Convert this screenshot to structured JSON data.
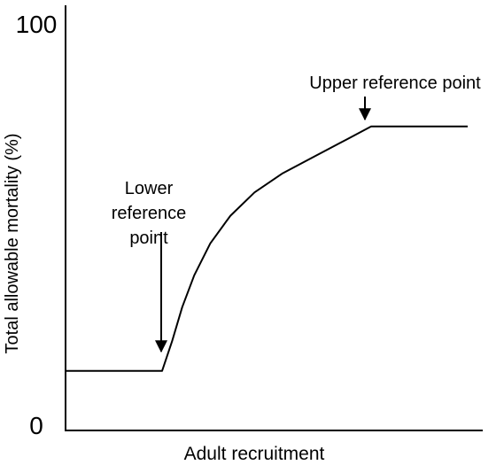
{
  "chart_data": {
    "type": "line",
    "title": "",
    "xlabel": "Adult recruitment",
    "ylabel": "Total allowable mortality (%)",
    "y_ticks": [
      "100",
      "0"
    ],
    "ylim": [
      0,
      100
    ],
    "xlim": [
      0,
      100
    ],
    "grid": false,
    "legend": "none",
    "series": [
      {
        "x": [
          0,
          24,
          26.5,
          29,
          32,
          36,
          41,
          47,
          54,
          62,
          70,
          76,
          100
        ],
        "y": [
          14,
          14,
          21,
          29,
          36.5,
          44,
          50.5,
          56,
          60.5,
          64.5,
          68.5,
          71.5,
          71.5
        ]
      }
    ],
    "annotations": [
      {
        "lines": [
          "Lower",
          "reference",
          "point"
        ],
        "x": 24,
        "y": 14
      },
      {
        "lines": [
          "Upper reference point"
        ],
        "x": 73.5,
        "y": 71.5
      }
    ],
    "colors": {
      "line": "#000000",
      "axis": "#000000",
      "text": "#000000"
    }
  }
}
